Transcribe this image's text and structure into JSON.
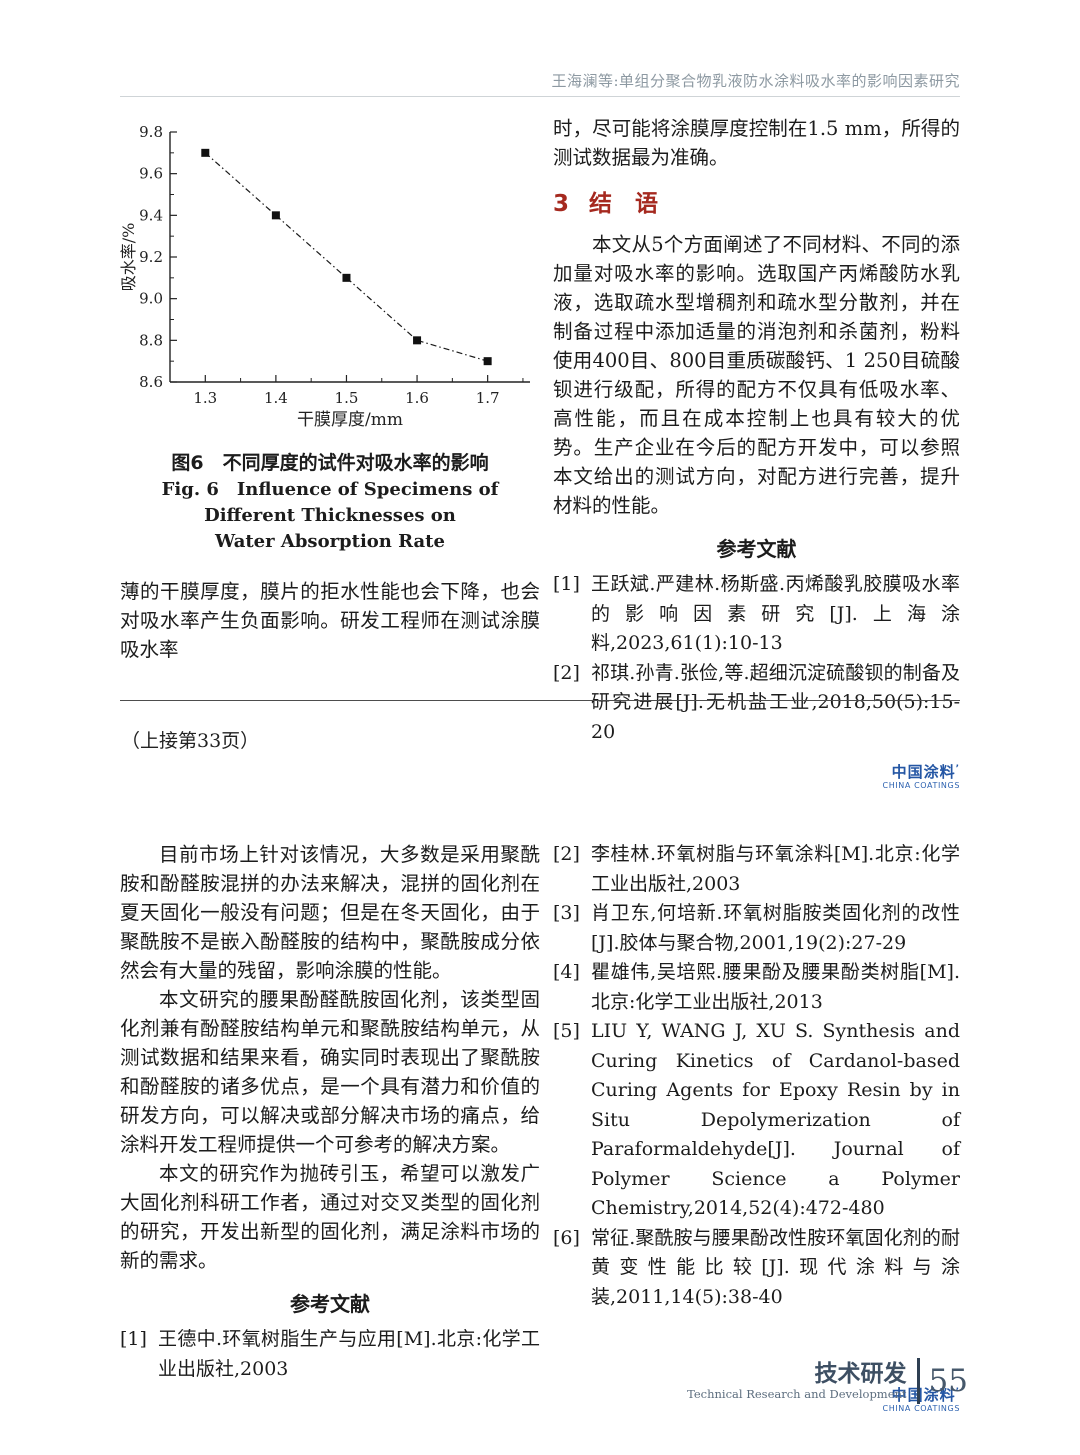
{
  "header": {
    "running_title": "王海澜等:单组分聚合物乳液防水涂料吸水率的影响因素研究"
  },
  "chart_data": {
    "type": "line",
    "title": "",
    "xlabel": "干膜厚度/mm",
    "ylabel": "吸水率/%",
    "x": [
      1.3,
      1.4,
      1.5,
      1.6,
      1.7
    ],
    "values": [
      9.7,
      9.4,
      9.1,
      8.8,
      8.7
    ],
    "xlim": [
      1.25,
      1.76
    ],
    "ylim": [
      8.6,
      9.8
    ],
    "x_ticks": [
      1.3,
      1.4,
      1.5,
      1.6,
      1.7
    ],
    "y_ticks": [
      8.6,
      8.8,
      9.0,
      9.2,
      9.4,
      9.6,
      9.8
    ],
    "x_minor_step": 0.05,
    "y_minor_step": 0.1,
    "grid": false,
    "legend": "none",
    "marker": "square",
    "line_style": "dash-dot",
    "line_color": "#1a1a1a"
  },
  "figure": {
    "caption_zh": "图6　不同厚度的试件对吸水率的影响",
    "caption_en_line1": "Fig. 6　Influence of Specimens of Different Thicknesses on",
    "caption_en_line2": "Water Absorption Rate"
  },
  "top_left": {
    "paragraph": "薄的干膜厚度，膜片的拒水性能也会下降，也会对吸水率产生负面影响。研发工程师在测试涂膜吸水率"
  },
  "top_right": {
    "paragraph_continued": "时，尽可能将涂膜厚度控制在1.5 mm，所得的测试数据最为准确。",
    "section_number": "3",
    "section_title": "结　语",
    "conclusion": "本文从5个方面阐述了不同材料、不同的添加量对吸水率的影响。选取国产丙烯酸防水乳液，选取疏水型增稠剂和疏水型分散剂，并在制备过程中添加适量的消泡剂和杀菌剂，粉料使用400目、800目重质碳酸钙、1 250目硫酸钡进行级配，所得的配方不仅具有低吸水率、高性能，而且在成本控制上也具有较大的优势。生产企业在今后的配方开发中，可以参照本文给出的测试方向，对配方进行完善，提升材料的性能。",
    "references_heading": "参考文献",
    "references": [
      {
        "num": "[1]",
        "text": "王跃斌.严建林.杨斯盛.丙烯酸乳胶膜吸水率的影响因素研究[J].上海涂料,2023,61(1):10-13"
      },
      {
        "num": "[2]",
        "text": "祁琪.孙青.张俭,等.超细沉淀硫酸钡的制备及研究进展[J].无机盐工业,2018,50(5):15-20"
      }
    ]
  },
  "continued_note": "（上接第33页）",
  "lower_left": {
    "paragraphs": [
      "目前市场上针对该情况，大多数是采用聚酰胺和酚醛胺混拼的办法来解决，混拼的固化剂在夏天固化一般没有问题；但是在冬天固化，由于聚酰胺不是嵌入酚醛胺的结构中，聚酰胺成分依然会有大量的残留，影响涂膜的性能。",
      "本文研究的腰果酚醛酰胺固化剂，该类型固化剂兼有酚醛胺结构单元和聚酰胺结构单元，从测试数据和结果来看，确实同时表现出了聚酰胺和酚醛胺的诸多优点，是一个具有潜力和价值的研发方向，可以解决或部分解决市场的痛点，给涂料开发工程师提供一个可参考的解决方案。",
      "本文的研究作为抛砖引玉，希望可以激发广大固化剂科研工作者，通过对交叉类型的固化剂的研究，开发出新型的固化剂，满足涂料市场的新的需求。"
    ],
    "references_heading": "参考文献",
    "references": [
      {
        "num": "[1]",
        "text": "王德中.环氧树脂生产与应用[M].北京:化学工业出版社,2003"
      }
    ]
  },
  "lower_right": {
    "references": [
      {
        "num": "[2]",
        "text": "李桂林.环氧树脂与环氧涂料[M].北京:化学工业出版社,2003"
      },
      {
        "num": "[3]",
        "text": "肖卫东,何培新.环氧树脂胺类固化剂的改性[J].胶体与聚合物,2001,19(2):27-29"
      },
      {
        "num": "[4]",
        "text": "瞿雄伟,吴培熙.腰果酚及腰果酚类树脂[M].北京:化学工业出版社,2013"
      },
      {
        "num": "[5]",
        "text": "LIU Y, WANG J, XU S. Synthesis and Curing Kinetics of Cardanol-based Curing Agents for Epoxy Resin by in Situ Depolymerization of Paraformaldehyde[J]. Journal of Polymer Science a Polymer Chemistry,2014,52(4):472-480"
      },
      {
        "num": "[6]",
        "text": "常征.聚酰胺与腰果酚改性胺环氧固化剂的耐黄变性能比较[J].现代涂料与涂装,2011,14(5):38-40"
      }
    ]
  },
  "logo": {
    "zh": "中国涂料",
    "tm": "’",
    "en": "CHINA COATINGS"
  },
  "footer": {
    "section_zh": "技术研发",
    "section_en": "Technical Research and Development",
    "page_number": "55"
  },
  "colors": {
    "section_red": "#a5291f",
    "logo_blue": "#2456a4",
    "footer_blue": "#3d4f63",
    "header_gray": "#8d99a2"
  }
}
